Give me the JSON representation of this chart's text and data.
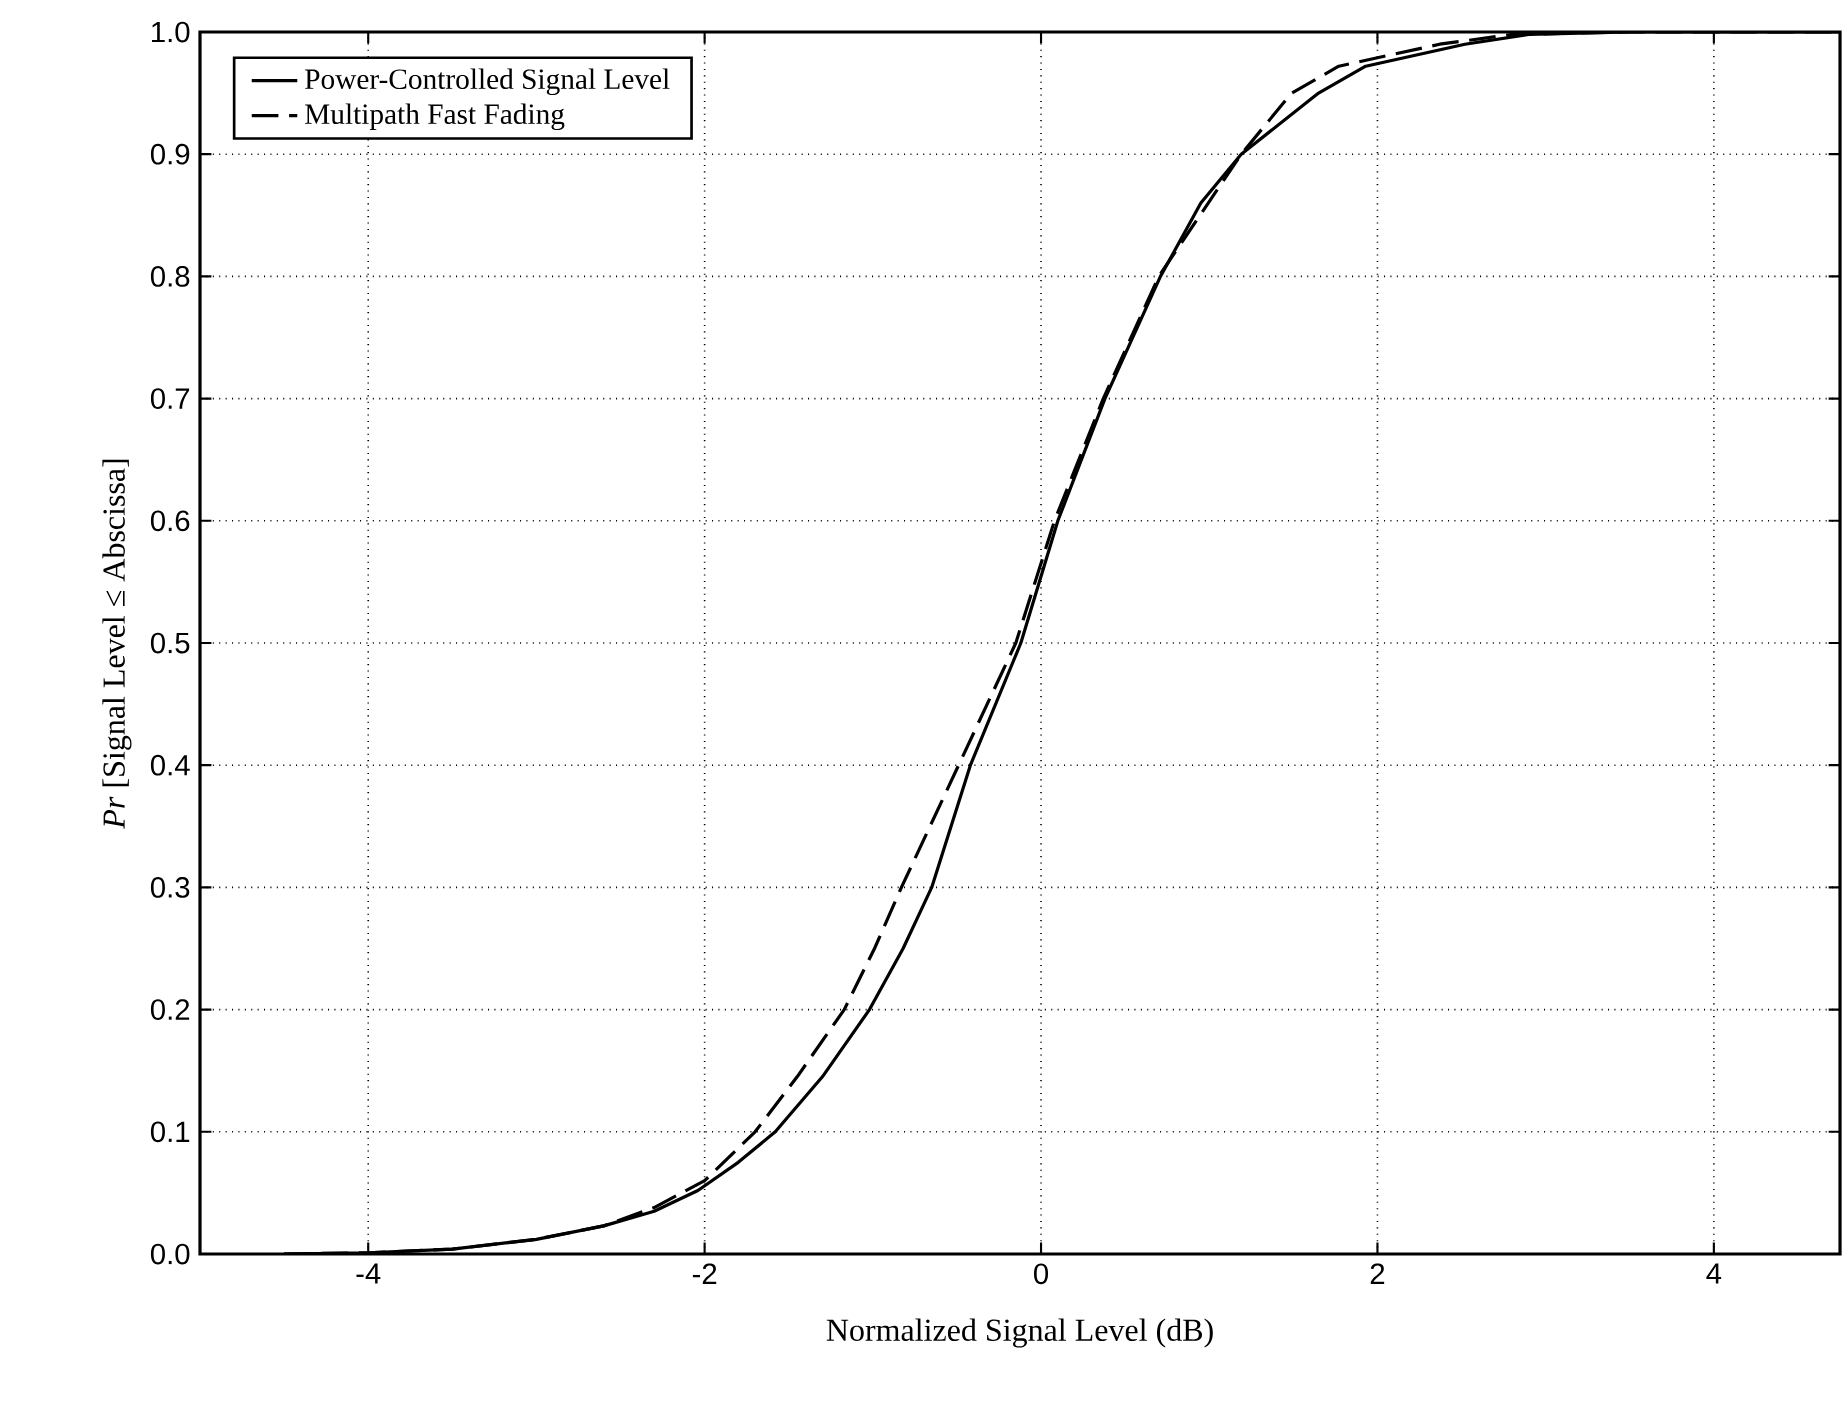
{
  "chart_data": {
    "type": "line",
    "xlabel": "Normalized Signal Level (dB)",
    "ylabel": "*Pr* [Signal Level ≤ Abscissa]",
    "xlim": [
      -5,
      4.75
    ],
    "ylim": [
      0,
      1
    ],
    "xticks": [
      -4,
      -2,
      0,
      2,
      4
    ],
    "yticks": [
      {
        "value": 0,
        "label": "0.0"
      },
      {
        "value": 0.1,
        "label": "0.1"
      },
      {
        "value": 0.2,
        "label": "0.2"
      },
      {
        "value": 0.3,
        "label": "0.3"
      },
      {
        "value": 0.4,
        "label": "0.4"
      },
      {
        "value": 0.5,
        "label": "0.5"
      },
      {
        "value": 0.6,
        "label": "0.6"
      },
      {
        "value": 0.7,
        "label": "0.7"
      },
      {
        "value": 0.8,
        "label": "0.8"
      },
      {
        "value": 0.9,
        "label": "0.9"
      },
      {
        "value": 1,
        "label": "1.0"
      }
    ],
    "grid": true,
    "legend": "top left",
    "series": [
      {
        "name": "Power-Controlled Signal Level",
        "color": "#000000",
        "line_style": "solid",
        "x": [
          -4.5,
          -4,
          -3.5,
          -3,
          -2.6,
          -2.3,
          -2.04,
          -1.8,
          -1.58,
          -1.3,
          -1.02,
          -0.82,
          -0.65,
          -0.42,
          -0.12,
          0.1,
          0.38,
          0.71,
          0.95,
          1.19,
          1.65,
          1.93,
          2.52,
          2.9,
          3.5,
          4.75
        ],
        "values": [
          0,
          0.001,
          0.004,
          0.012,
          0.023,
          0.035,
          0.052,
          0.075,
          0.1,
          0.145,
          0.2,
          0.25,
          0.3,
          0.4,
          0.5,
          0.6,
          0.7,
          0.8,
          0.86,
          0.9,
          0.95,
          0.972,
          0.99,
          0.998,
          1,
          1
        ]
      },
      {
        "name": "Multipath Fast Fading",
        "color": "#000000",
        "line_style": "dashed",
        "x": [
          -4.5,
          -4,
          -3.5,
          -3,
          -2.6,
          -2.3,
          -2.0,
          -1.7,
          -1.45,
          -1.17,
          -0.99,
          -0.83,
          -0.49,
          -0.15,
          0.08,
          0.37,
          0.7,
          1.19,
          1.49,
          1.77,
          2.37,
          2.8,
          3.5,
          4.75
        ],
        "values": [
          0,
          0.001,
          0.004,
          0.012,
          0.023,
          0.038,
          0.06,
          0.1,
          0.145,
          0.2,
          0.25,
          0.3,
          0.4,
          0.5,
          0.6,
          0.7,
          0.8,
          0.9,
          0.95,
          0.972,
          0.99,
          0.998,
          1,
          1
        ]
      }
    ]
  }
}
